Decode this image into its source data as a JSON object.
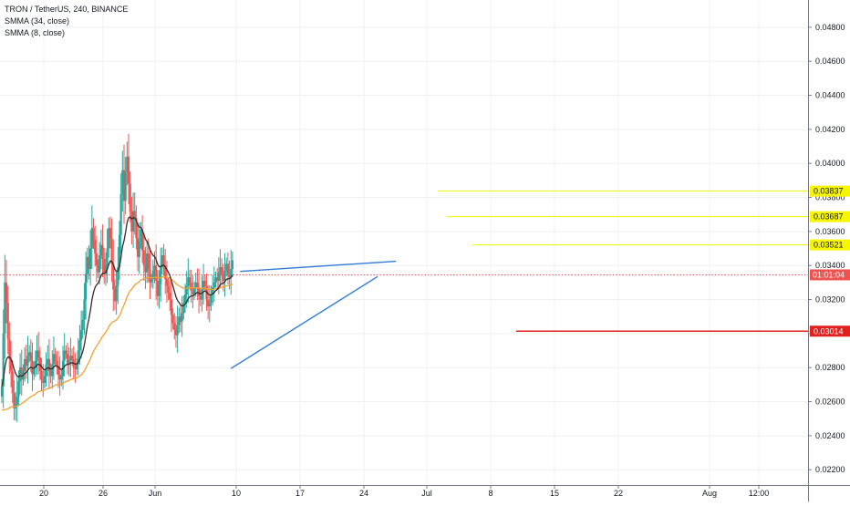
{
  "legend": {
    "symbol": "TRON / TetherUS, 240, BINANCE",
    "ma_long": "SMMA (34, close)",
    "ma_short": "SMMA (8, close)"
  },
  "colors": {
    "up": "#26a69a",
    "down": "#ef5350",
    "smma_long": "#f0a030",
    "smma_short": "#3a2a2a",
    "trendline": "#2f7bd6",
    "resistance": "#f6f600",
    "support": "#e0211d",
    "current_price": "#ef5350",
    "grid": "#eef0f3"
  },
  "chart_data": {
    "type": "candlestick",
    "title": "TRON / TetherUS, 240, BINANCE",
    "x_tick_labels": [
      "20",
      "26",
      "Jun",
      "10",
      "17",
      "24",
      "Jul",
      "8",
      "15",
      "22",
      "Aug",
      "12:00"
    ],
    "y_axis": {
      "ylim": [
        0.0211,
        0.0496
      ],
      "ticks": [
        "0.02200",
        "0.02400",
        "0.02600",
        "0.02800",
        "0.03000",
        "0.03200",
        "0.03400",
        "0.03600",
        "0.03800",
        "0.04000",
        "0.04200",
        "0.04400",
        "0.04600",
        "0.04800"
      ]
    },
    "price_levels": [
      {
        "label": "0.03837",
        "value": 0.03837,
        "color": "yellow"
      },
      {
        "label": "0.03687",
        "value": 0.03687,
        "color": "yellow"
      },
      {
        "label": "0.03521",
        "value": 0.03521,
        "color": "yellow"
      },
      {
        "label": "0.03014",
        "value": 0.03014,
        "color": "red"
      }
    ],
    "current_price": {
      "value": 0.03345,
      "label": "01:01:04"
    },
    "trendlines": [
      {
        "from": [
          "2019-06-08",
          0.03365
        ],
        "to": [
          "2019-06-25",
          0.03425
        ]
      },
      {
        "from": [
          "2019-06-07",
          0.02795
        ],
        "to": [
          "2019-06-23",
          0.03335
        ]
      }
    ],
    "close_series": [
      0.0269,
      0.03,
      0.033,
      0.0318,
      0.0297,
      0.0285,
      0.0278,
      0.0265,
      0.0256,
      0.0258,
      0.0263,
      0.0272,
      0.028,
      0.0273,
      0.0278,
      0.0285,
      0.0281,
      0.0287,
      0.0289,
      0.0284,
      0.0276,
      0.028,
      0.0284,
      0.029,
      0.0286,
      0.0278,
      0.0273,
      0.0271,
      0.0275,
      0.0282,
      0.0285,
      0.0278,
      0.0275,
      0.0282,
      0.0288,
      0.0284,
      0.0281,
      0.0276,
      0.0273,
      0.0275,
      0.0284,
      0.029,
      0.0288,
      0.0282,
      0.0284,
      0.0287,
      0.0285,
      0.028,
      0.0279,
      0.0282,
      0.029,
      0.0296,
      0.0302,
      0.0308,
      0.032,
      0.0335,
      0.0345,
      0.0338,
      0.035,
      0.0362,
      0.0355,
      0.0347,
      0.034,
      0.0336,
      0.0346,
      0.0352,
      0.0344,
      0.0335,
      0.034,
      0.035,
      0.0362,
      0.0356,
      0.0341,
      0.0326,
      0.0319,
      0.0328,
      0.0339,
      0.0358,
      0.0382,
      0.0396,
      0.0378,
      0.0395,
      0.0404,
      0.0388,
      0.0372,
      0.036,
      0.0372,
      0.0368,
      0.0356,
      0.0345,
      0.0354,
      0.0361,
      0.0349,
      0.034,
      0.0336,
      0.0347,
      0.0338,
      0.033,
      0.0332,
      0.0337,
      0.034,
      0.0331,
      0.0322,
      0.0329,
      0.0339,
      0.0346,
      0.034,
      0.0332,
      0.0328,
      0.0324,
      0.032,
      0.0311,
      0.0306,
      0.0302,
      0.0299,
      0.0305,
      0.031,
      0.0307,
      0.0312,
      0.0318,
      0.0323,
      0.0328,
      0.0333,
      0.033,
      0.0325,
      0.0323,
      0.0327,
      0.033,
      0.0327,
      0.0322,
      0.032,
      0.0326,
      0.0331,
      0.0328,
      0.032,
      0.0316,
      0.0318,
      0.0323,
      0.0327,
      0.033,
      0.0333,
      0.0331,
      0.0336,
      0.0339,
      0.0334,
      0.0331,
      0.0337,
      0.0341,
      0.0335,
      0.0333,
      0.0338,
      0.0343
    ]
  }
}
